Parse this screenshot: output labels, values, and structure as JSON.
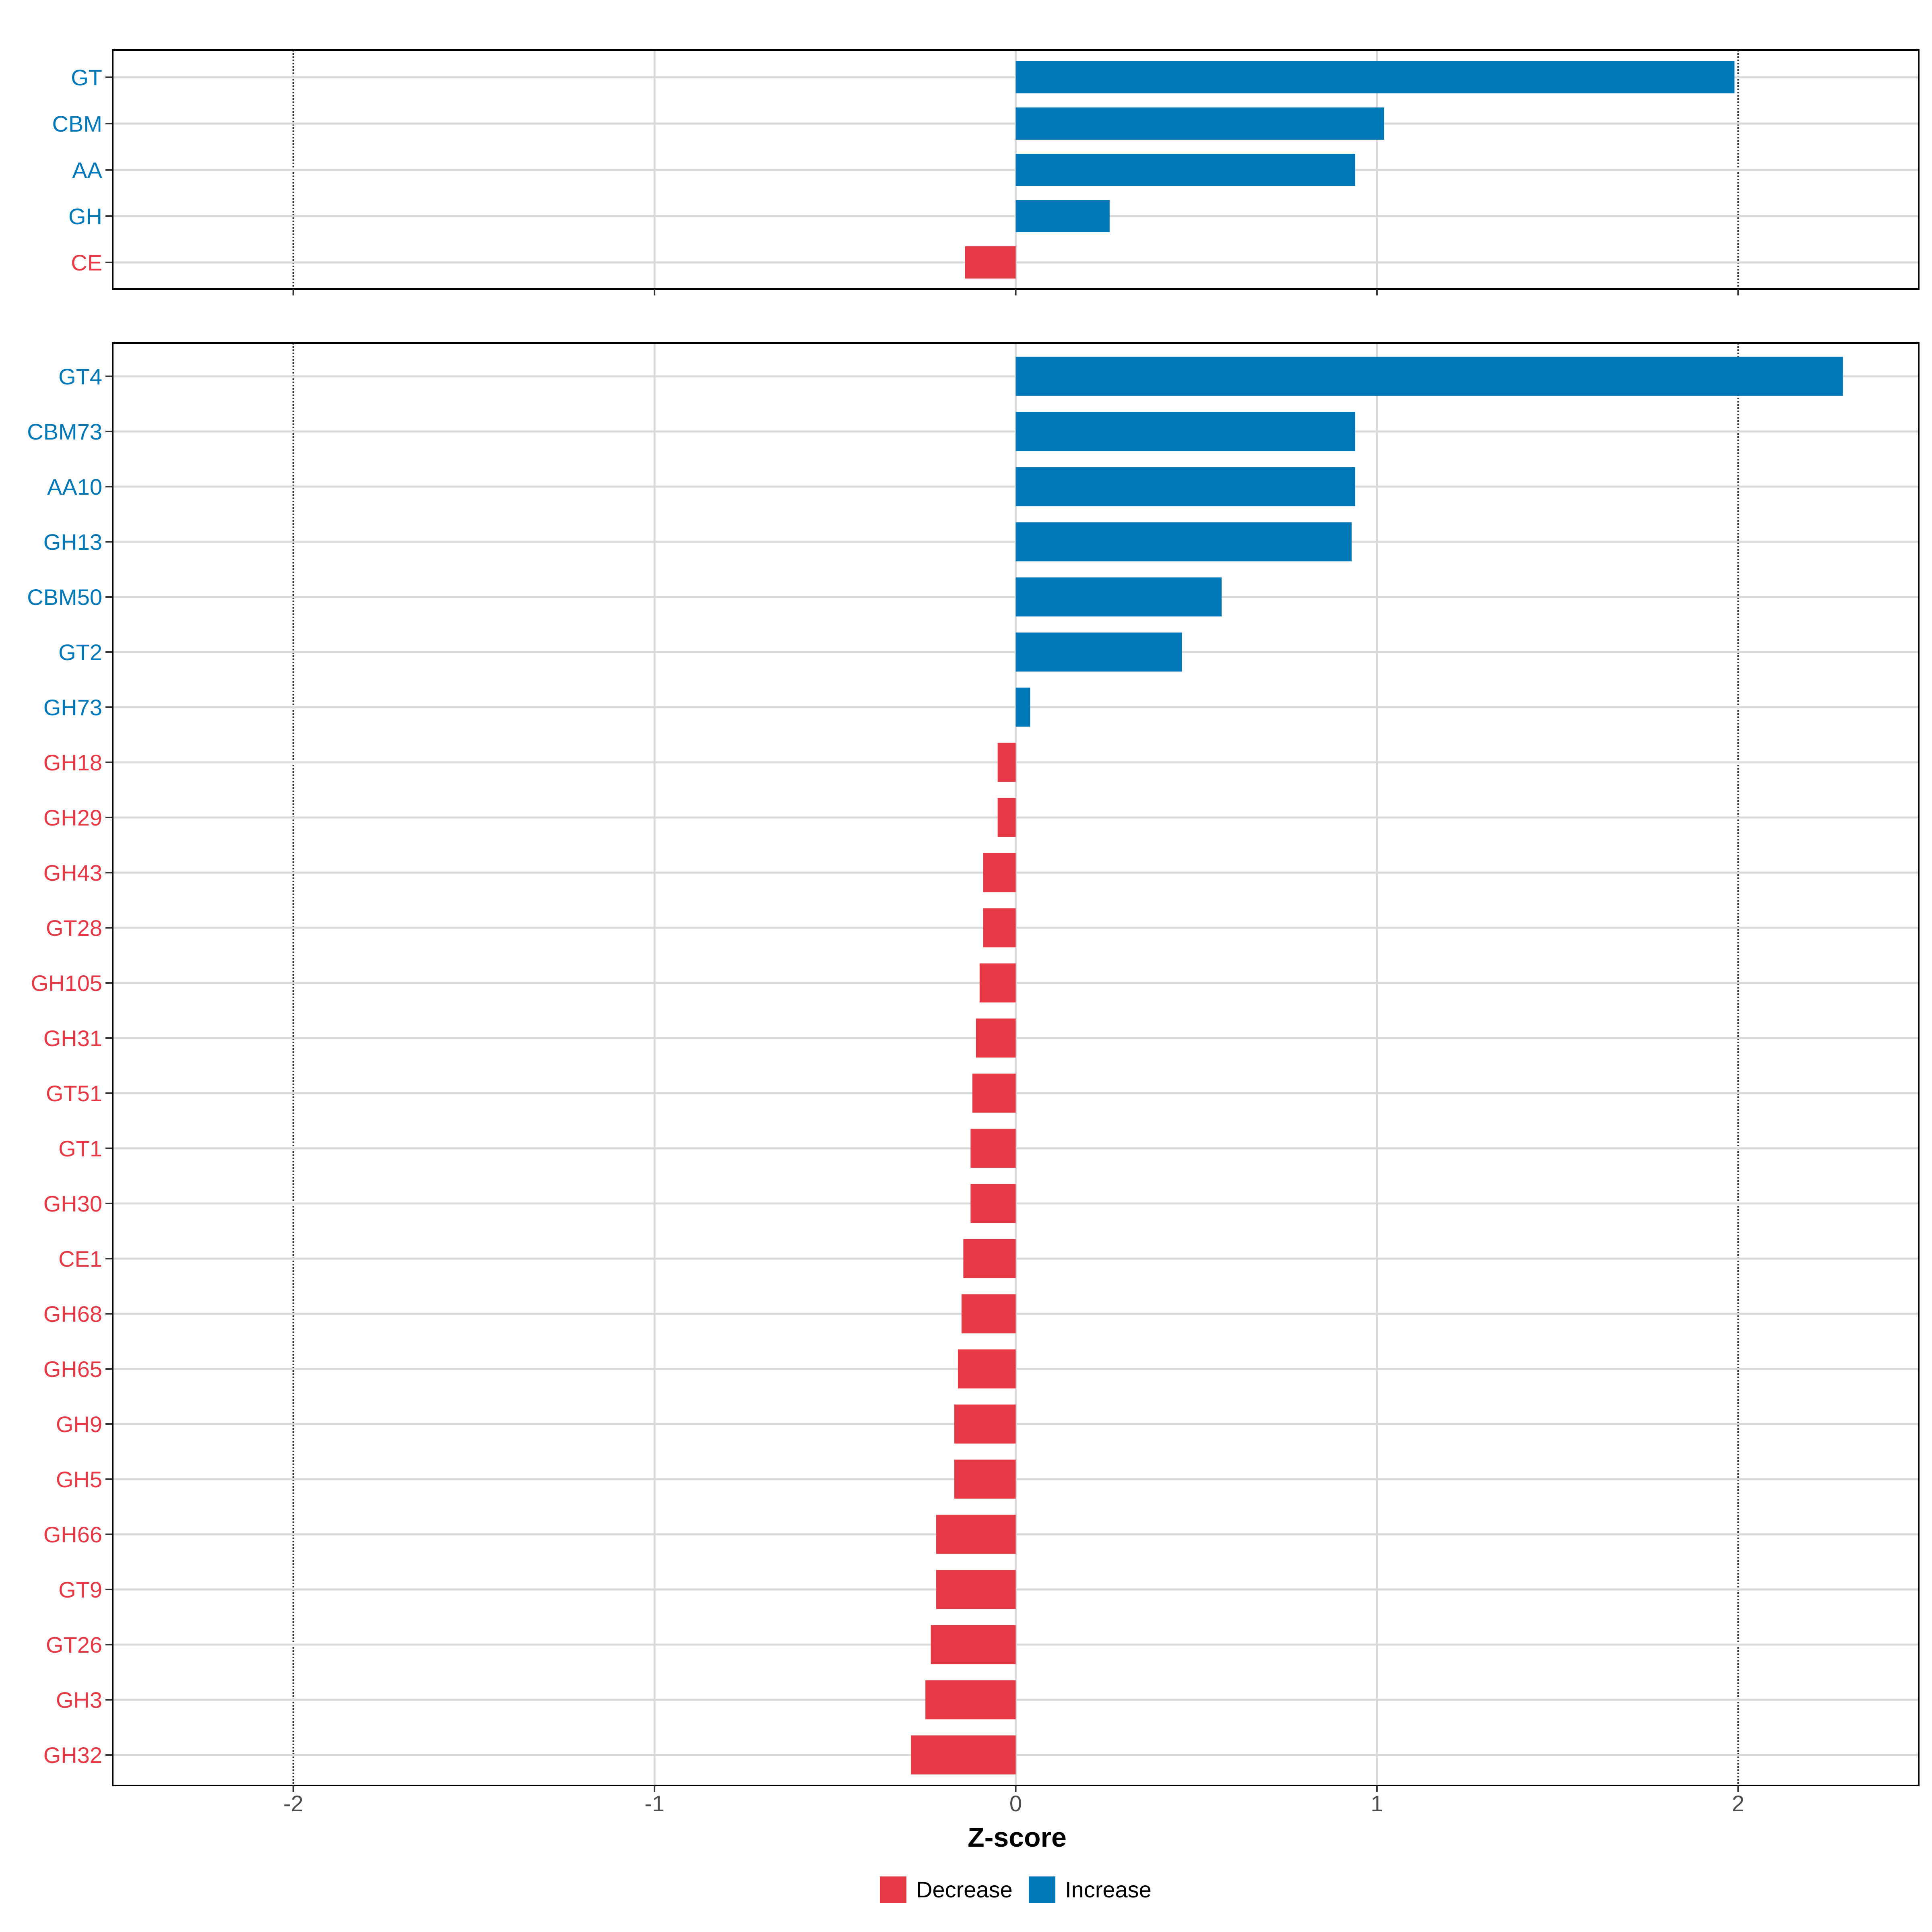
{
  "chart_data": [
    {
      "type": "bar",
      "orientation": "horizontal",
      "panel": "top",
      "categories": [
        "GT",
        "CBM",
        "AA",
        "GH",
        "CE"
      ],
      "values": [
        1.99,
        1.02,
        0.94,
        0.26,
        -0.14
      ],
      "xlim": [
        -2.5,
        2.5
      ],
      "xticks": [
        -2,
        -1,
        0,
        1,
        2
      ],
      "reference_lines": [
        -2,
        2
      ],
      "grid": true
    },
    {
      "type": "bar",
      "orientation": "horizontal",
      "panel": "bottom",
      "categories": [
        "GT4",
        "CBM73",
        "AA10",
        "GH13",
        "CBM50",
        "GT2",
        "GH73",
        "GH18",
        "GH29",
        "GH43",
        "GT28",
        "GH105",
        "GH31",
        "GT51",
        "GT1",
        "GH30",
        "CE1",
        "GH68",
        "GH65",
        "GH9",
        "GH5",
        "GH66",
        "GT9",
        "GT26",
        "GH3",
        "GH32"
      ],
      "values": [
        2.29,
        0.94,
        0.94,
        0.93,
        0.57,
        0.46,
        0.04,
        -0.05,
        -0.05,
        -0.09,
        -0.09,
        -0.1,
        -0.11,
        -0.12,
        -0.125,
        -0.125,
        -0.145,
        -0.15,
        -0.16,
        -0.17,
        -0.17,
        -0.22,
        -0.22,
        -0.235,
        -0.25,
        -0.29
      ],
      "xlim": [
        -2.5,
        2.5
      ],
      "xticks": [
        -2,
        -1,
        0,
        1,
        2
      ],
      "xtick_labels": [
        "-2",
        "-1",
        "0",
        "1",
        "2"
      ],
      "reference_lines": [
        -2,
        2
      ],
      "grid": true,
      "xlabel": "Z-score"
    }
  ],
  "legend": {
    "placement": "bottom",
    "items": [
      {
        "label": "Decrease",
        "color": "#e63946"
      },
      {
        "label": "Increase",
        "color": "#0077b6"
      }
    ]
  },
  "colors": {
    "increase": "#0077b6",
    "decrease": "#e63946",
    "grid": "#d9d9d9",
    "reference_line": "#333333",
    "panel_border": "#000000"
  }
}
